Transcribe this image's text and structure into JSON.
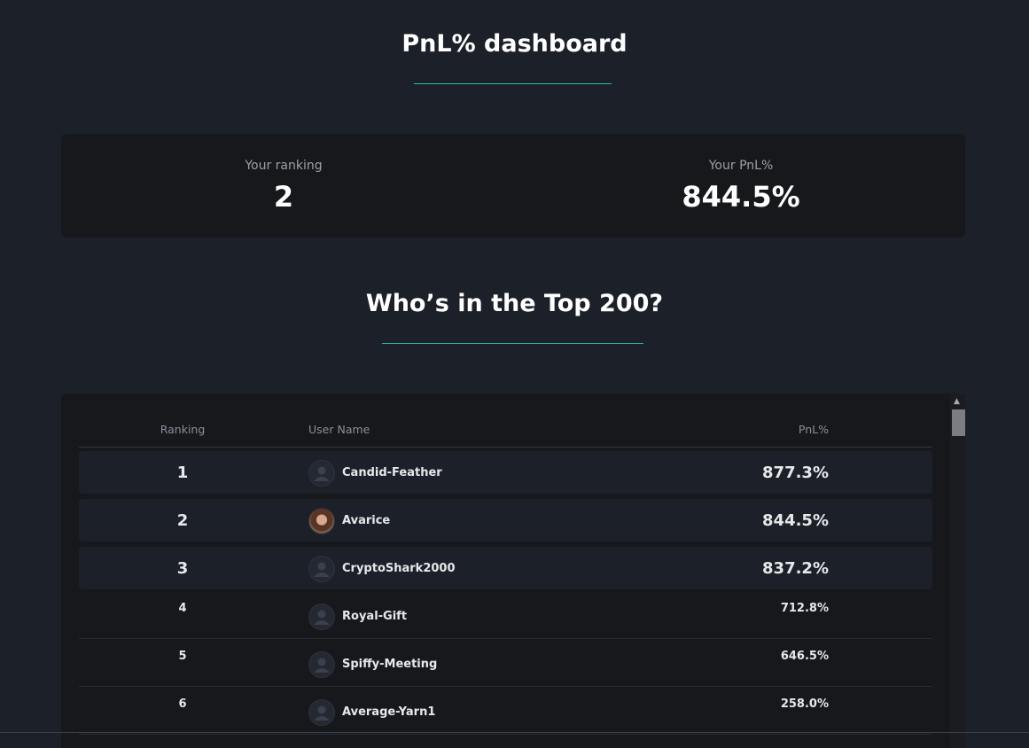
{
  "header": {
    "title": "PnL% dashboard"
  },
  "summary": {
    "ranking_label": "Your ranking",
    "ranking": "2",
    "pnl_label": "Your PnL%",
    "pnl": "844.5%"
  },
  "leaderboard": {
    "title": "Who’s in the Top 200?",
    "table": {
      "columns": [
        "Ranking",
        "User Name",
        "PnL%"
      ],
      "rows": [
        [
          "1",
          "Candid-Feather",
          "877.3%"
        ],
        [
          "2",
          "Avarice",
          "844.5%"
        ],
        [
          "3",
          "CryptoShark2000",
          "837.2%"
        ],
        [
          "4",
          "Royal-Gift",
          "712.8%"
        ],
        [
          "5",
          "Spiffy-Meeting",
          "646.5%"
        ],
        [
          "6",
          "Average-Yarn1",
          "258.0%"
        ]
      ]
    }
  }
}
